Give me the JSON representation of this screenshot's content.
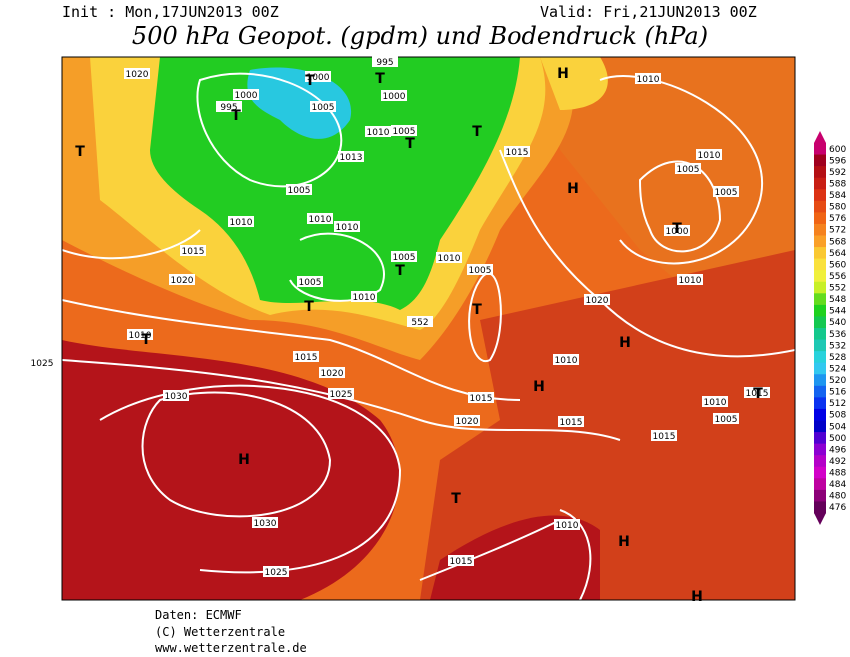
{
  "header": {
    "init": "Init : Mon,17JUN2013 00Z",
    "valid": "Valid: Fri,21JUN2013 00Z",
    "title": "500 hPa Geopot. (gpdm) und Bodendruck (hPa)"
  },
  "isobar_labels": [
    1020,
    1000,
    995,
    1000,
    995,
    1005,
    1000,
    1010,
    1005,
    1015,
    1010,
    1010,
    1005,
    1005,
    1000,
    1013,
    1005,
    1010,
    1010,
    1010,
    1005,
    1010,
    1005,
    1015,
    1020,
    1010,
    1020,
    1005,
    1010,
    552,
    1010,
    1015,
    1020,
    1010,
    1025,
    1030,
    1025,
    1015,
    1010,
    1015,
    1005,
    1015,
    1020,
    1015,
    1030,
    1010,
    1015,
    1025
  ],
  "pressure_centers": [
    "H",
    "T",
    "T",
    "T",
    "T",
    "T",
    "T",
    "H",
    "T",
    "T",
    "T",
    "T",
    "T",
    "H",
    "H",
    "T",
    "H",
    "T",
    "H",
    "H"
  ],
  "legend": {
    "levels": [
      {
        "value": 600,
        "color": "#c8006e"
      },
      {
        "value": 596,
        "color": "#a0001e"
      },
      {
        "value": 592,
        "color": "#b40f14"
      },
      {
        "value": 588,
        "color": "#c81e14"
      },
      {
        "value": 584,
        "color": "#dc3214"
      },
      {
        "value": 580,
        "color": "#e64b14"
      },
      {
        "value": 576,
        "color": "#f06414"
      },
      {
        "value": 572,
        "color": "#f5821e"
      },
      {
        "value": 568,
        "color": "#faa028"
      },
      {
        "value": 564,
        "color": "#fac832"
      },
      {
        "value": 560,
        "color": "#fae13c"
      },
      {
        "value": 556,
        "color": "#f0f03c"
      },
      {
        "value": 552,
        "color": "#c8f028"
      },
      {
        "value": 548,
        "color": "#64dc1e"
      },
      {
        "value": 544,
        "color": "#1ed21e"
      },
      {
        "value": 540,
        "color": "#14c850"
      },
      {
        "value": 536,
        "color": "#14c88c"
      },
      {
        "value": 532,
        "color": "#1ec8b4"
      },
      {
        "value": 528,
        "color": "#28d2dc"
      },
      {
        "value": 524,
        "color": "#32c8f0"
      },
      {
        "value": 520,
        "color": "#1e96f0"
      },
      {
        "value": 516,
        "color": "#1464f0"
      },
      {
        "value": 512,
        "color": "#0a32f0"
      },
      {
        "value": 508,
        "color": "#0000e6"
      },
      {
        "value": 504,
        "color": "#0000c8"
      },
      {
        "value": 500,
        "color": "#5000d2"
      },
      {
        "value": 496,
        "color": "#8c00d2"
      },
      {
        "value": 492,
        "color": "#b400c8"
      },
      {
        "value": 488,
        "color": "#d200c8"
      },
      {
        "value": 484,
        "color": "#be00a0"
      },
      {
        "value": 480,
        "color": "#8c0078"
      },
      {
        "value": 476,
        "color": "#64005a"
      }
    ]
  },
  "footer": {
    "source": "Daten: ECMWF",
    "copyright": "(C) Wetterzentrale",
    "url": "www.wetterzentrale.de"
  }
}
